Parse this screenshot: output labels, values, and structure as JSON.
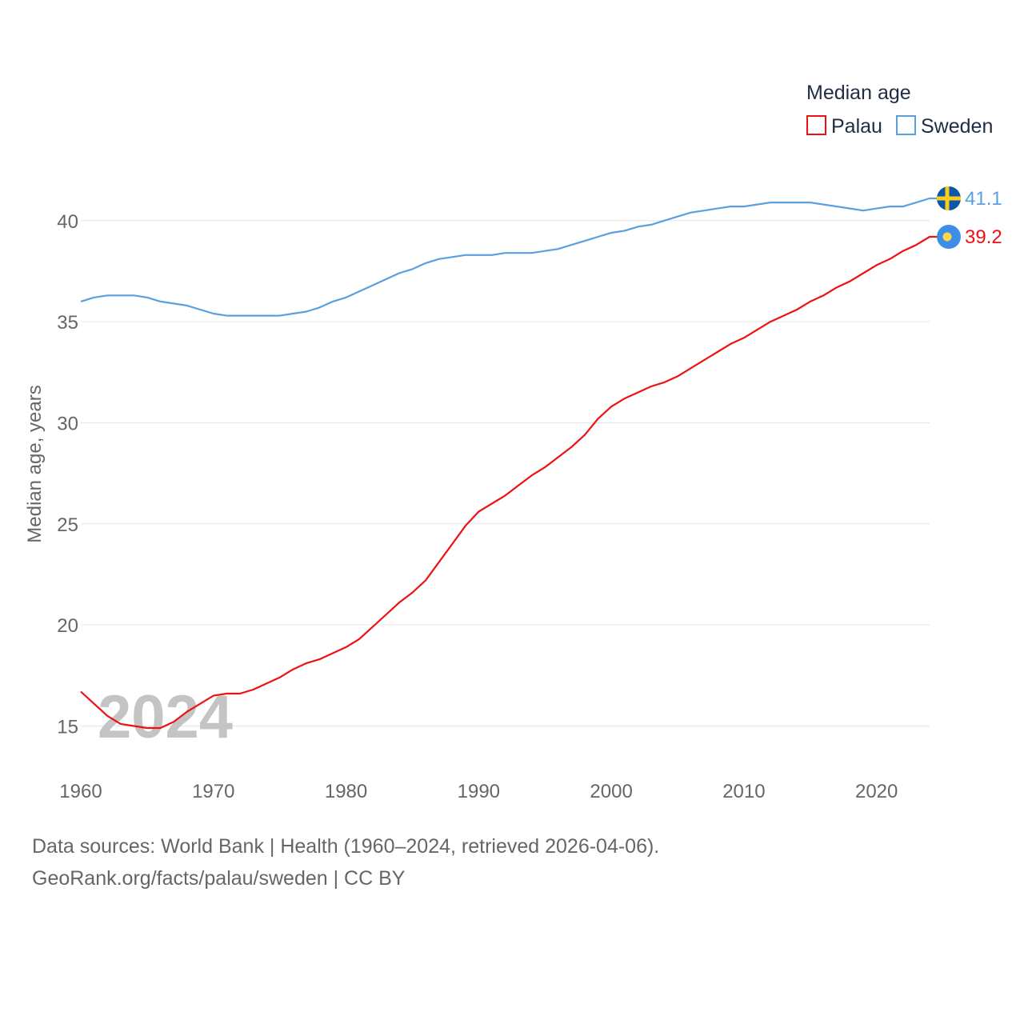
{
  "chart_data": {
    "type": "line",
    "title": "",
    "legend_title": "Median age",
    "ylabel": "Median age, years",
    "xlabel": "",
    "xlim": [
      1960,
      2024
    ],
    "ylim": [
      13,
      43
    ],
    "y_ticks": [
      15,
      20,
      25,
      30,
      35,
      40
    ],
    "x_ticks": [
      1960,
      1970,
      1980,
      1990,
      2000,
      2010,
      2020
    ],
    "year_watermark": "2024",
    "legend_position": "top-right",
    "series": [
      {
        "name": "Palau",
        "color": "#ee1111",
        "end_label": "39.2",
        "flag_icon": "palau-flag-icon",
        "x": [
          1960,
          1961,
          1962,
          1963,
          1964,
          1965,
          1966,
          1967,
          1968,
          1969,
          1970,
          1971,
          1972,
          1973,
          1974,
          1975,
          1976,
          1977,
          1978,
          1979,
          1980,
          1981,
          1982,
          1983,
          1984,
          1985,
          1986,
          1987,
          1988,
          1989,
          1990,
          1991,
          1992,
          1993,
          1994,
          1995,
          1996,
          1997,
          1998,
          1999,
          2000,
          2001,
          2002,
          2003,
          2004,
          2005,
          2006,
          2007,
          2008,
          2009,
          2010,
          2011,
          2012,
          2013,
          2014,
          2015,
          2016,
          2017,
          2018,
          2019,
          2020,
          2021,
          2022,
          2023,
          2024
        ],
        "values": [
          16.7,
          16.1,
          15.5,
          15.1,
          15.0,
          14.9,
          14.9,
          15.2,
          15.7,
          16.1,
          16.5,
          16.6,
          16.6,
          16.8,
          17.1,
          17.4,
          17.8,
          18.1,
          18.3,
          18.6,
          18.9,
          19.3,
          19.9,
          20.5,
          21.1,
          21.6,
          22.2,
          23.1,
          24.0,
          24.9,
          25.6,
          26.0,
          26.4,
          26.9,
          27.4,
          27.8,
          28.3,
          28.8,
          29.4,
          30.2,
          30.8,
          31.2,
          31.5,
          31.8,
          32.0,
          32.3,
          32.7,
          33.1,
          33.5,
          33.9,
          34.2,
          34.6,
          35.0,
          35.3,
          35.6,
          36.0,
          36.3,
          36.7,
          37.0,
          37.4,
          37.8,
          38.1,
          38.5,
          38.8,
          39.2
        ]
      },
      {
        "name": "Sweden",
        "color": "#5aa0e0",
        "end_label": "41.1",
        "flag_icon": "sweden-flag-icon",
        "x": [
          1960,
          1961,
          1962,
          1963,
          1964,
          1965,
          1966,
          1967,
          1968,
          1969,
          1970,
          1971,
          1972,
          1973,
          1974,
          1975,
          1976,
          1977,
          1978,
          1979,
          1980,
          1981,
          1982,
          1983,
          1984,
          1985,
          1986,
          1987,
          1988,
          1989,
          1990,
          1991,
          1992,
          1993,
          1994,
          1995,
          1996,
          1997,
          1998,
          1999,
          2000,
          2001,
          2002,
          2003,
          2004,
          2005,
          2006,
          2007,
          2008,
          2009,
          2010,
          2011,
          2012,
          2013,
          2014,
          2015,
          2016,
          2017,
          2018,
          2019,
          2020,
          2021,
          2022,
          2023,
          2024
        ],
        "values": [
          36.0,
          36.2,
          36.3,
          36.3,
          36.3,
          36.2,
          36.0,
          35.9,
          35.8,
          35.6,
          35.4,
          35.3,
          35.3,
          35.3,
          35.3,
          35.3,
          35.4,
          35.5,
          35.7,
          36.0,
          36.2,
          36.5,
          36.8,
          37.1,
          37.4,
          37.6,
          37.9,
          38.1,
          38.2,
          38.3,
          38.3,
          38.3,
          38.4,
          38.4,
          38.4,
          38.5,
          38.6,
          38.8,
          39.0,
          39.2,
          39.4,
          39.5,
          39.7,
          39.8,
          40.0,
          40.2,
          40.4,
          40.5,
          40.6,
          40.7,
          40.7,
          40.8,
          40.9,
          40.9,
          40.9,
          40.9,
          40.8,
          40.7,
          40.6,
          40.5,
          40.6,
          40.7,
          40.7,
          40.9,
          41.1
        ]
      }
    ]
  },
  "footer": {
    "sources": "Data sources: World Bank | Health (1960–2024, retrieved 2026-04-06).",
    "url": "GeoRank.org/facts/palau/sweden | CC BY"
  }
}
